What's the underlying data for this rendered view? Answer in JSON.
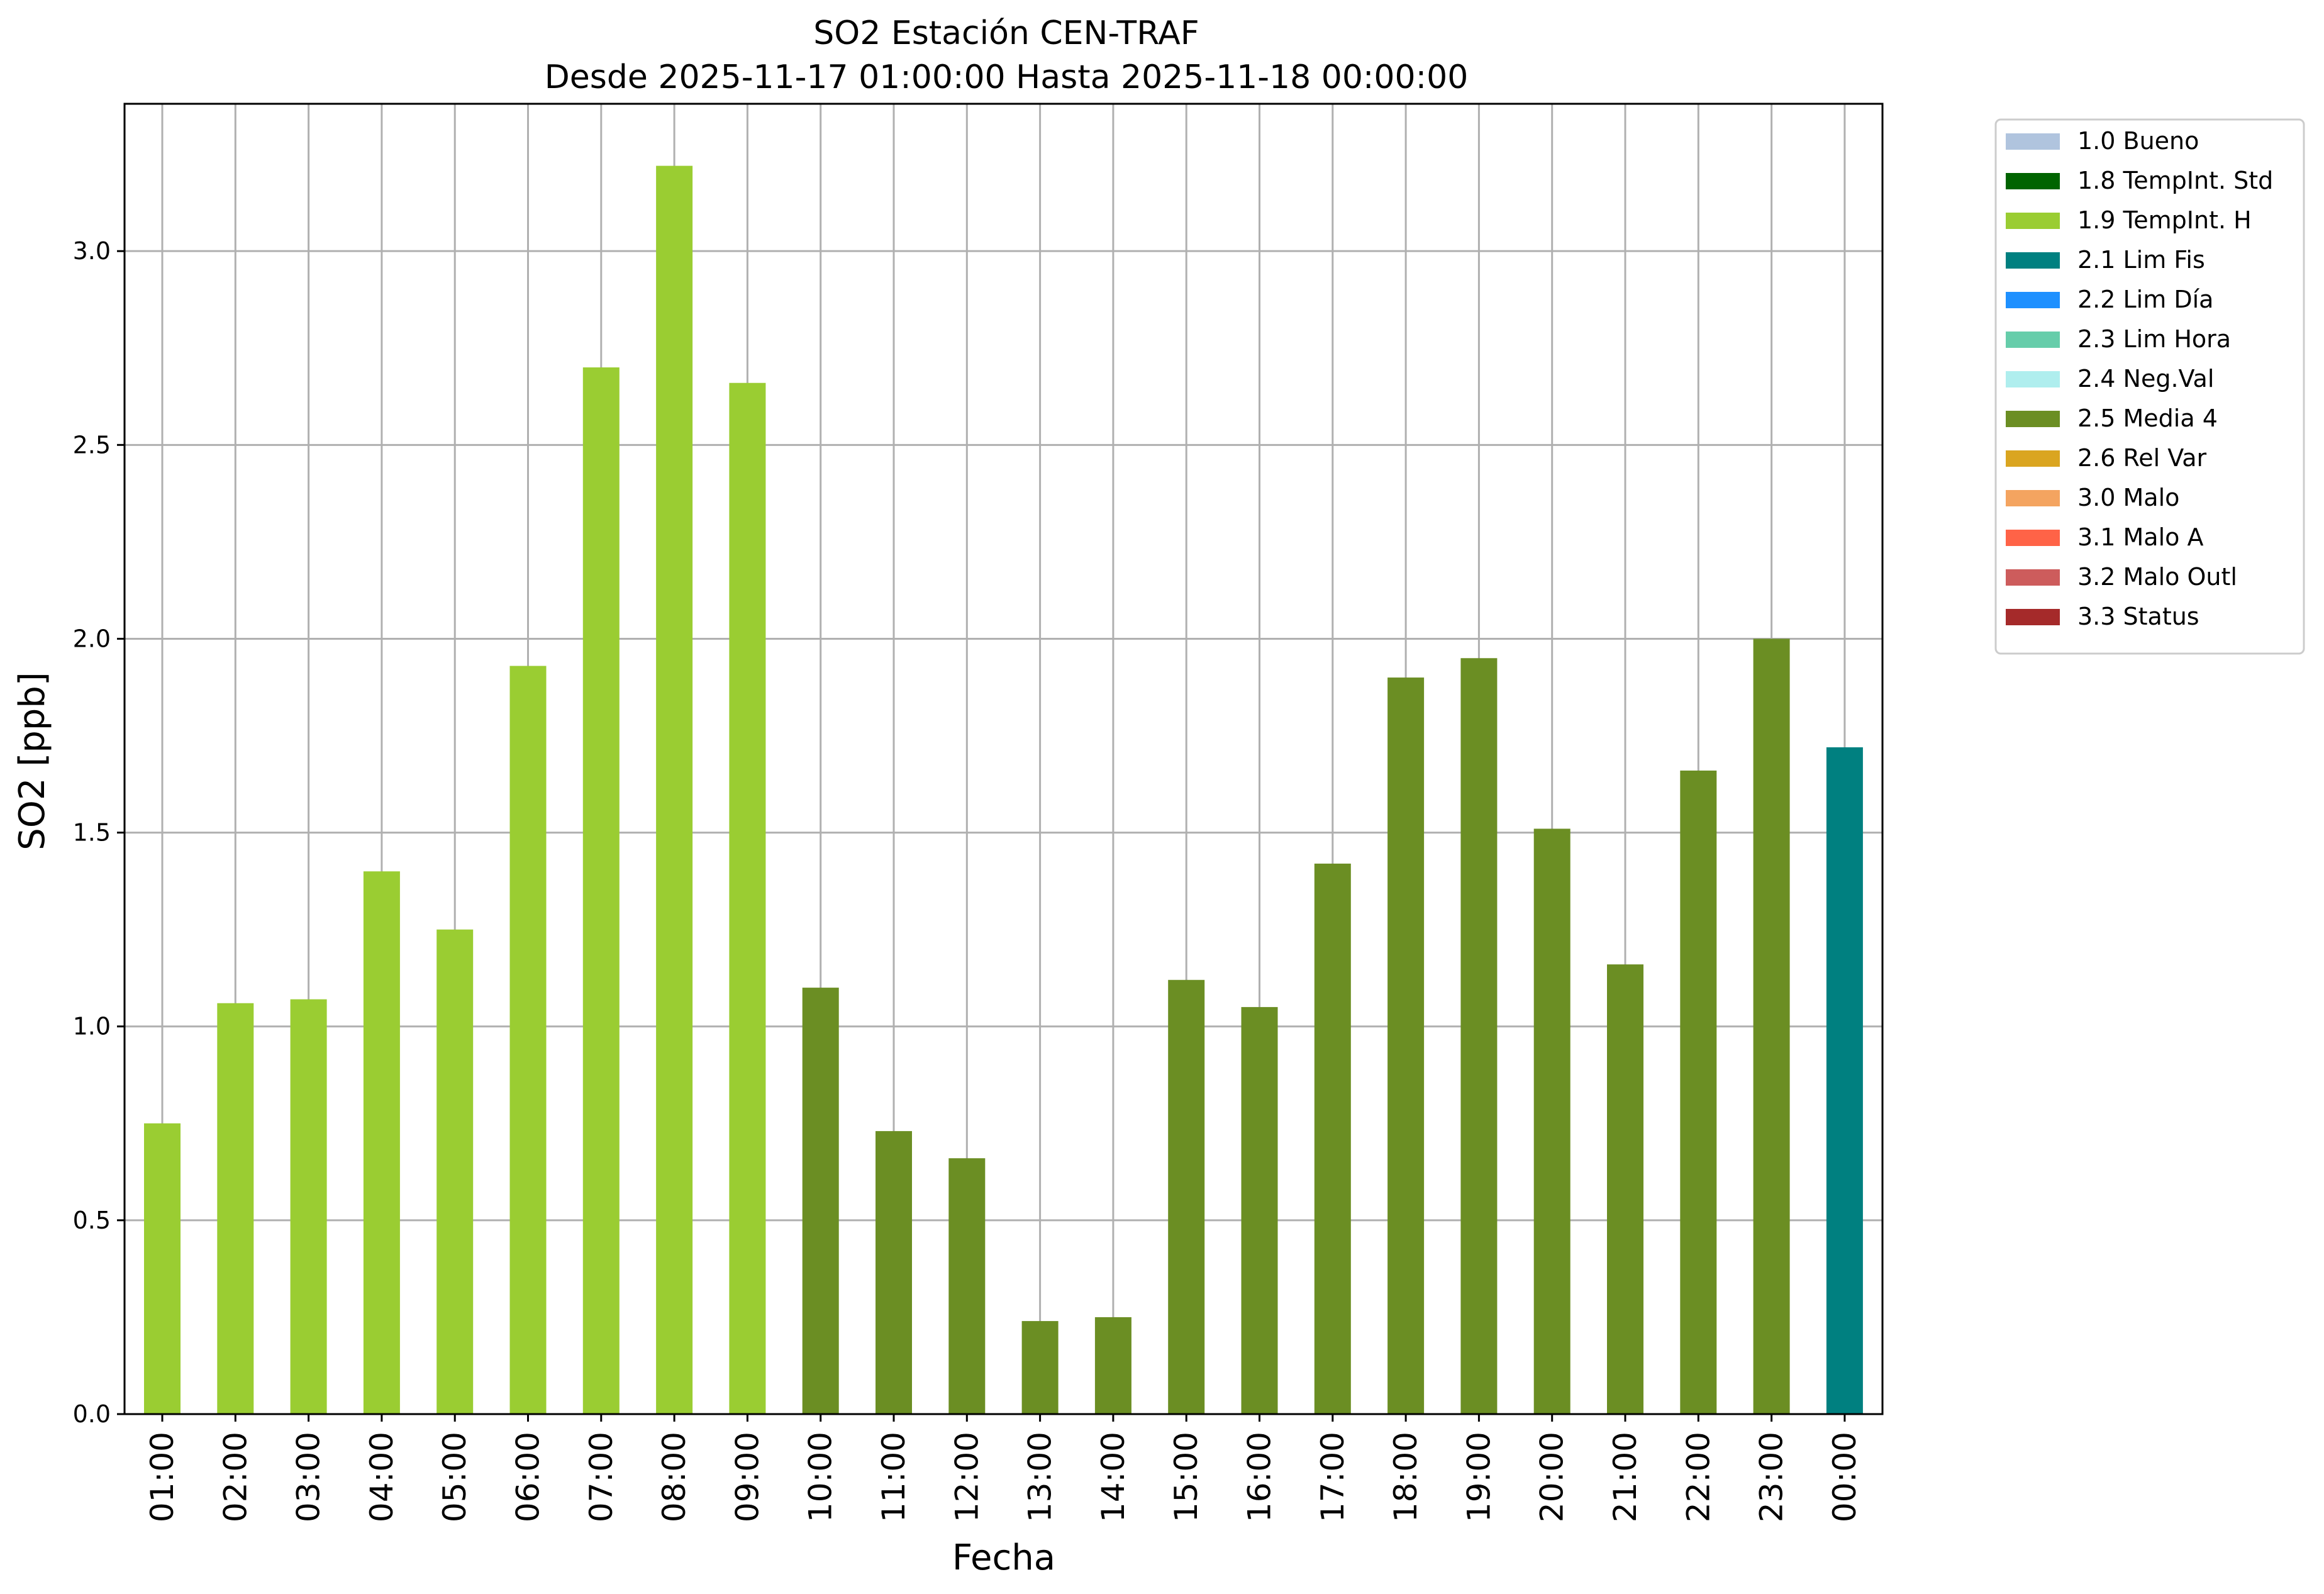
{
  "chart_data": {
    "type": "bar",
    "title": "SO2 Estación CEN-TRAF",
    "subtitle": "Desde 2025-11-17 01:00:00 Hasta 2025-11-18 00:00:00",
    "xlabel": "Fecha",
    "ylabel": "SO2 [ppb]",
    "ylim": [
      0,
      3.38
    ],
    "yticks": [
      "0.0",
      "0.5",
      "1.0",
      "1.5",
      "2.0",
      "2.5",
      "3.0"
    ],
    "grid": true,
    "legend_position": "outside-top-right",
    "categories": [
      "01:00",
      "02:00",
      "03:00",
      "04:00",
      "05:00",
      "06:00",
      "07:00",
      "08:00",
      "09:00",
      "10:00",
      "11:00",
      "12:00",
      "13:00",
      "14:00",
      "15:00",
      "16:00",
      "17:00",
      "18:00",
      "19:00",
      "20:00",
      "21:00",
      "22:00",
      "23:00",
      "00:00"
    ],
    "values": [
      0.75,
      1.06,
      1.07,
      1.4,
      1.25,
      1.93,
      2.7,
      3.22,
      2.66,
      1.1,
      0.73,
      0.66,
      0.24,
      0.25,
      1.12,
      1.05,
      1.42,
      1.9,
      1.95,
      1.51,
      1.16,
      1.66,
      2.0,
      1.72
    ],
    "flags": [
      "1.9 TempInt. H",
      "1.9 TempInt. H",
      "1.9 TempInt. H",
      "1.9 TempInt. H",
      "1.9 TempInt. H",
      "1.9 TempInt. H",
      "1.9 TempInt. H",
      "1.9 TempInt. H",
      "1.9 TempInt. H",
      "2.5 Media 4",
      "2.5 Media 4",
      "2.5 Media 4",
      "2.5 Media 4",
      "2.5 Media 4",
      "2.5 Media 4",
      "2.5 Media 4",
      "2.5 Media 4",
      "2.5 Media 4",
      "2.5 Media 4",
      "2.5 Media 4",
      "2.5 Media 4",
      "2.5 Media 4",
      "2.5 Media 4",
      "2.1 Lim Fis"
    ],
    "legend": [
      {
        "label": "1.0 Bueno",
        "color": "#b0c4de"
      },
      {
        "label": "1.8 TempInt. Std",
        "color": "#006400"
      },
      {
        "label": "1.9 TempInt. H",
        "color": "#9acd32"
      },
      {
        "label": "2.1 Lim Fis",
        "color": "#008080"
      },
      {
        "label": "2.2 Lim Día",
        "color": "#1e90ff"
      },
      {
        "label": "2.3 Lim Hora",
        "color": "#66cdaa"
      },
      {
        "label": "2.4 Neg.Val",
        "color": "#afeeee"
      },
      {
        "label": "2.5 Media 4",
        "color": "#6b8e23"
      },
      {
        "label": "2.6 Rel Var",
        "color": "#daa520"
      },
      {
        "label": "3.0 Malo",
        "color": "#f4a460"
      },
      {
        "label": "3.1 Malo A",
        "color": "#ff6347"
      },
      {
        "label": "3.2 Malo Outl",
        "color": "#cd5c5c"
      },
      {
        "label": "3.3 Status",
        "color": "#a52a2a"
      }
    ]
  }
}
